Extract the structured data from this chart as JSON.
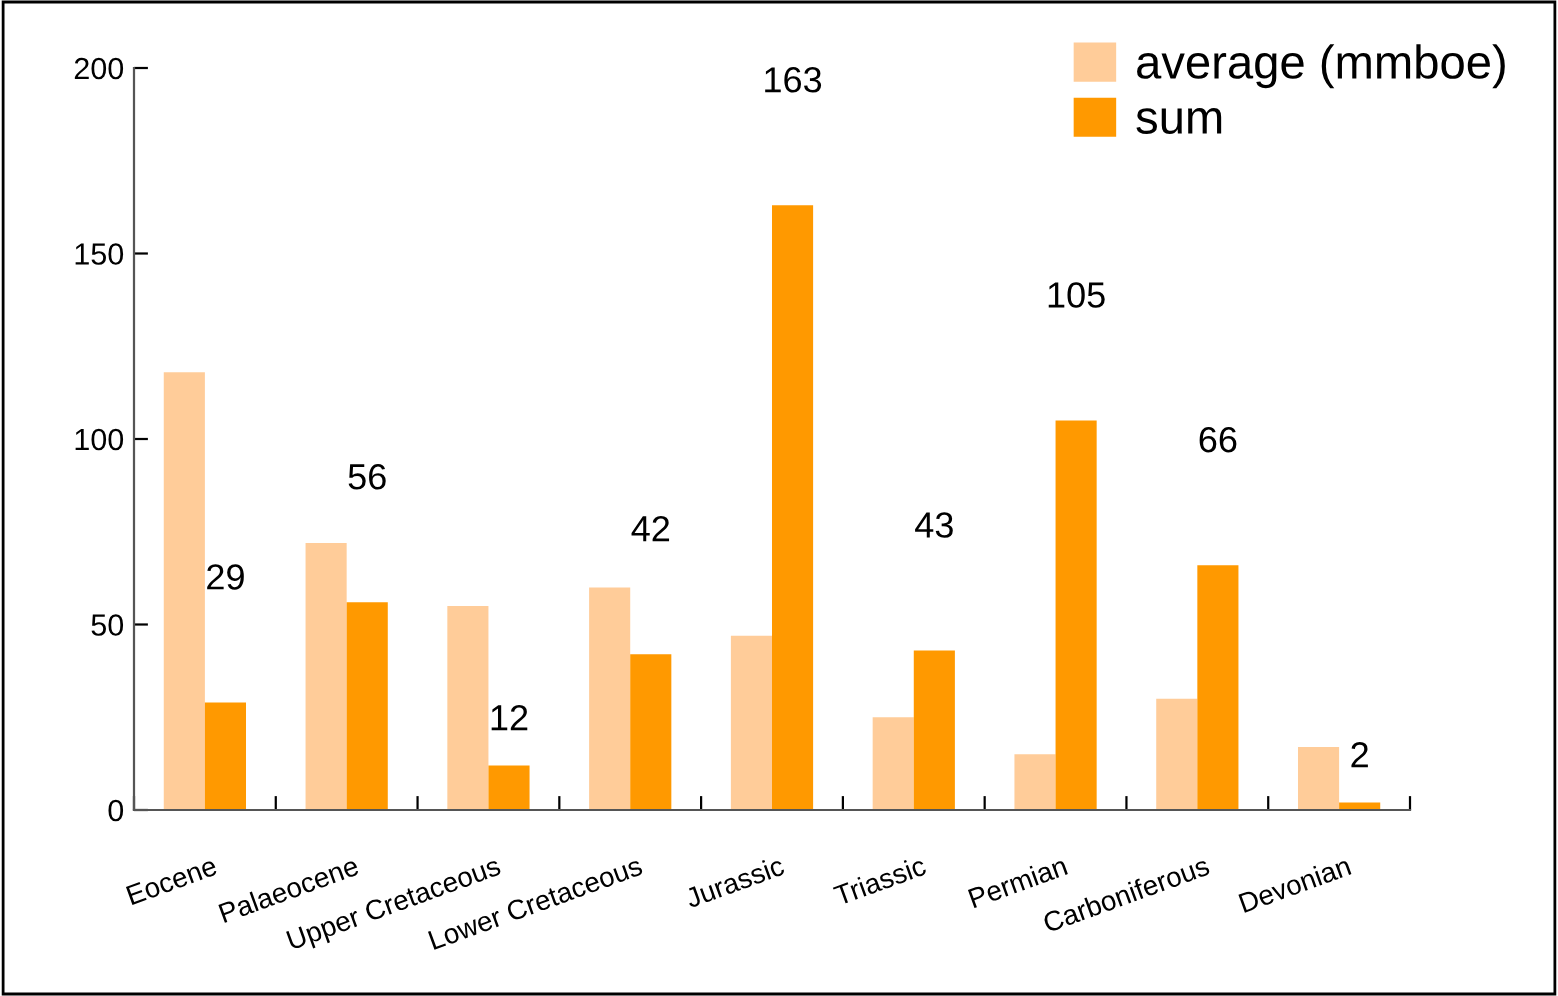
{
  "chart_data": {
    "type": "bar",
    "categories": [
      "Eocene",
      "Palaeocene",
      "Upper Cretaceous",
      "Lower Cretaceous",
      "Jurassic",
      "Triassic",
      "Permian",
      "Carboniferous",
      "Devonian"
    ],
    "series": [
      {
        "name": "average (mmboe)",
        "color": "#ffcc99",
        "values": [
          118,
          72,
          55,
          60,
          47,
          25,
          15,
          30,
          17
        ]
      },
      {
        "name": "sum",
        "color": "#ff9900",
        "values": [
          29,
          56,
          12,
          42,
          163,
          43,
          105,
          66,
          2
        ],
        "value_labels": [
          "29",
          "56",
          "12",
          "42",
          "163",
          "43",
          "105",
          "66",
          "2"
        ]
      }
    ],
    "ylim": [
      0,
      200
    ],
    "yticks": [
      0,
      50,
      100,
      150,
      200
    ],
    "grid": false,
    "legend": "top right"
  }
}
